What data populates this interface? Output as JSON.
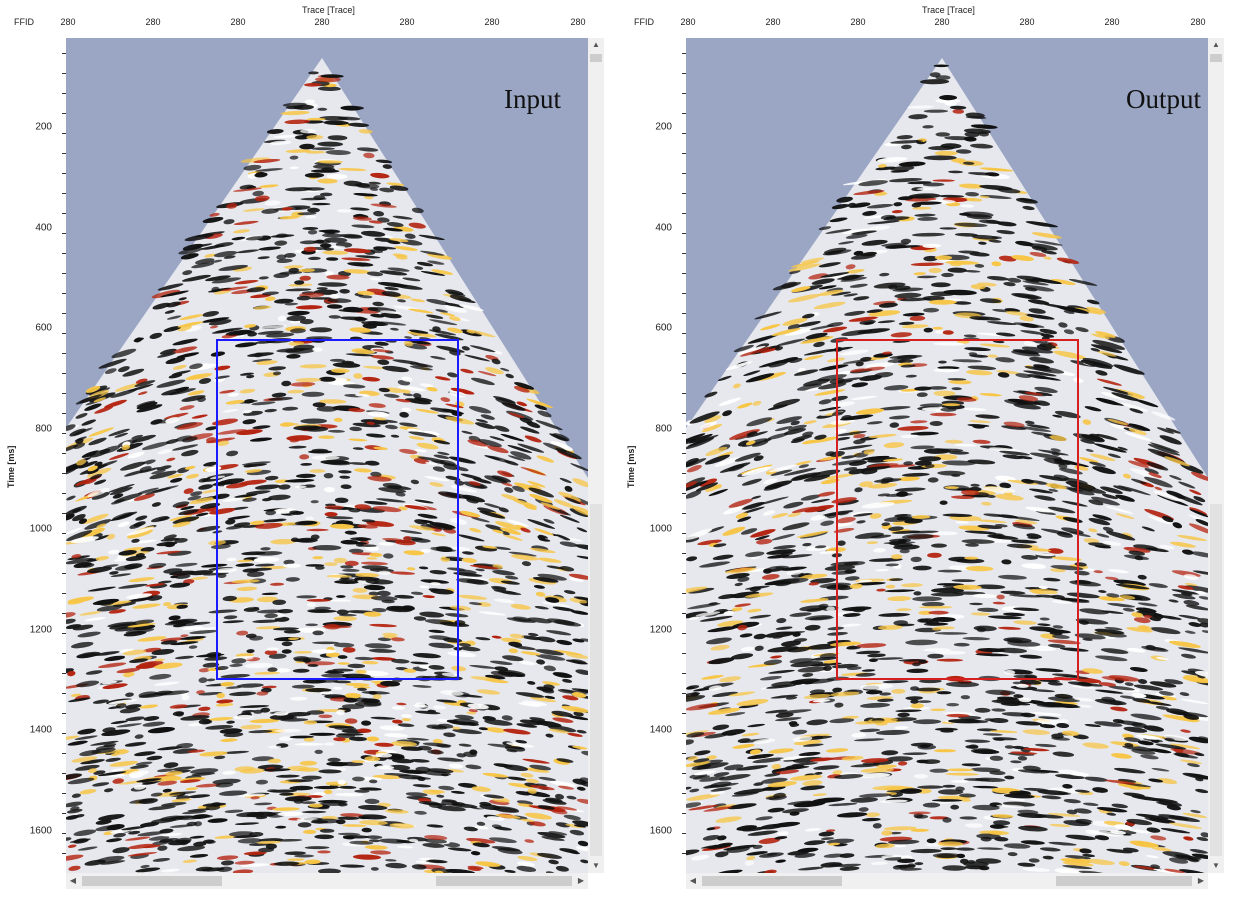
{
  "panels": [
    {
      "id": "input",
      "title": "Input",
      "ffid_label": "FFID",
      "trace_axis_title": "Trace [Trace]",
      "top_ticks": [
        "280",
        "280",
        "280",
        "280",
        "280",
        "280",
        "280"
      ],
      "y_axis_label": "Time [ms]",
      "y_ticks": [
        "200",
        "400",
        "600",
        "800",
        "1000",
        "1200",
        "1400",
        "1600"
      ],
      "roi_color": "#1a1aff",
      "roi": {
        "t_start_ms": 620,
        "t_end_ms": 1300
      }
    },
    {
      "id": "output",
      "title": "Output",
      "ffid_label": "FFID",
      "trace_axis_title": "Trace [Trace]",
      "top_ticks": [
        "280",
        "280",
        "280",
        "280",
        "280",
        "280",
        "280"
      ],
      "y_axis_label": "Time [ms]",
      "y_ticks": [
        "200",
        "400",
        "600",
        "800",
        "1000",
        "1200",
        "1400",
        "1600"
      ],
      "roi_color": "#d62020",
      "roi": {
        "t_start_ms": 620,
        "t_end_ms": 1300
      }
    }
  ],
  "colors": {
    "background": "#e6e8ee",
    "sky": "#9aa6c4",
    "black": "#111111",
    "red": "#b4230f",
    "yellow": "#f7c545"
  },
  "scrollbars": {
    "up_icon": "chevron-up-icon",
    "down_icon": "chevron-down-icon",
    "left_icon": "chevron-left-icon",
    "right_icon": "chevron-right-icon"
  }
}
